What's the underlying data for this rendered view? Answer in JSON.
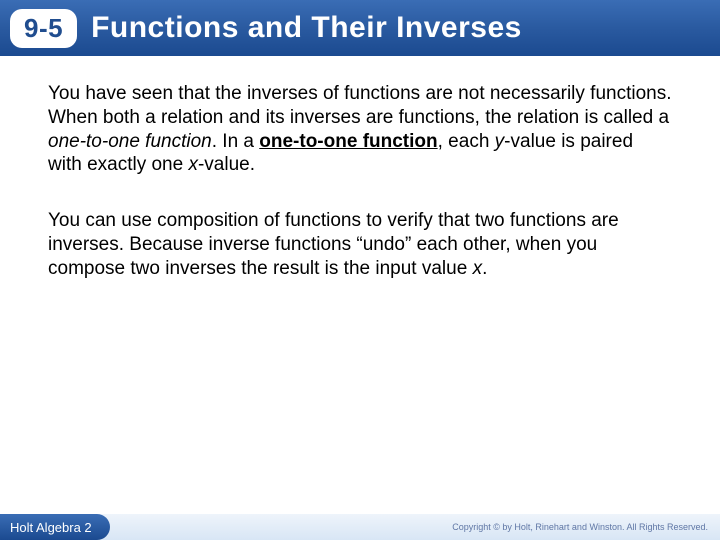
{
  "header": {
    "section_number": "9-5",
    "title": "Functions and Their Inverses",
    "bg_gradient_top": "#3a6db5",
    "bg_gradient_bottom": "#1b4a90",
    "title_color": "#ffffff",
    "section_box_bg": "#ffffff",
    "section_text_color": "#204d8f"
  },
  "body": {
    "para1_a": "You have seen that the inverses of functions are not necessarily functions. When both a relation and its inverses are functions, the relation is called a ",
    "para1_ital": "one-to-one function",
    "para1_b": ". In a ",
    "para1_bold": "one-to-one function",
    "para1_c": ", each ",
    "para1_y": "y",
    "para1_d": "-value is paired with exactly one ",
    "para1_x": "x",
    "para1_e": "-value.",
    "para2_a": "You can use composition of functions to verify that two functions are inverses. Because inverse functions “undo” each other, when you compose two inverses the result is the input value ",
    "para2_x": "x",
    "para2_b": ".",
    "text_color": "#000000",
    "font_size_pt": 14
  },
  "footer": {
    "left_text": "Holt Algebra 2",
    "copyright": "Copyright © by Holt, Rinehart and Winston. All Rights Reserved.",
    "left_bg_top": "#3a6db5",
    "left_bg_bottom": "#1b4a90",
    "right_bg": "#d8e6f5",
    "copyright_color": "#6077a5"
  }
}
